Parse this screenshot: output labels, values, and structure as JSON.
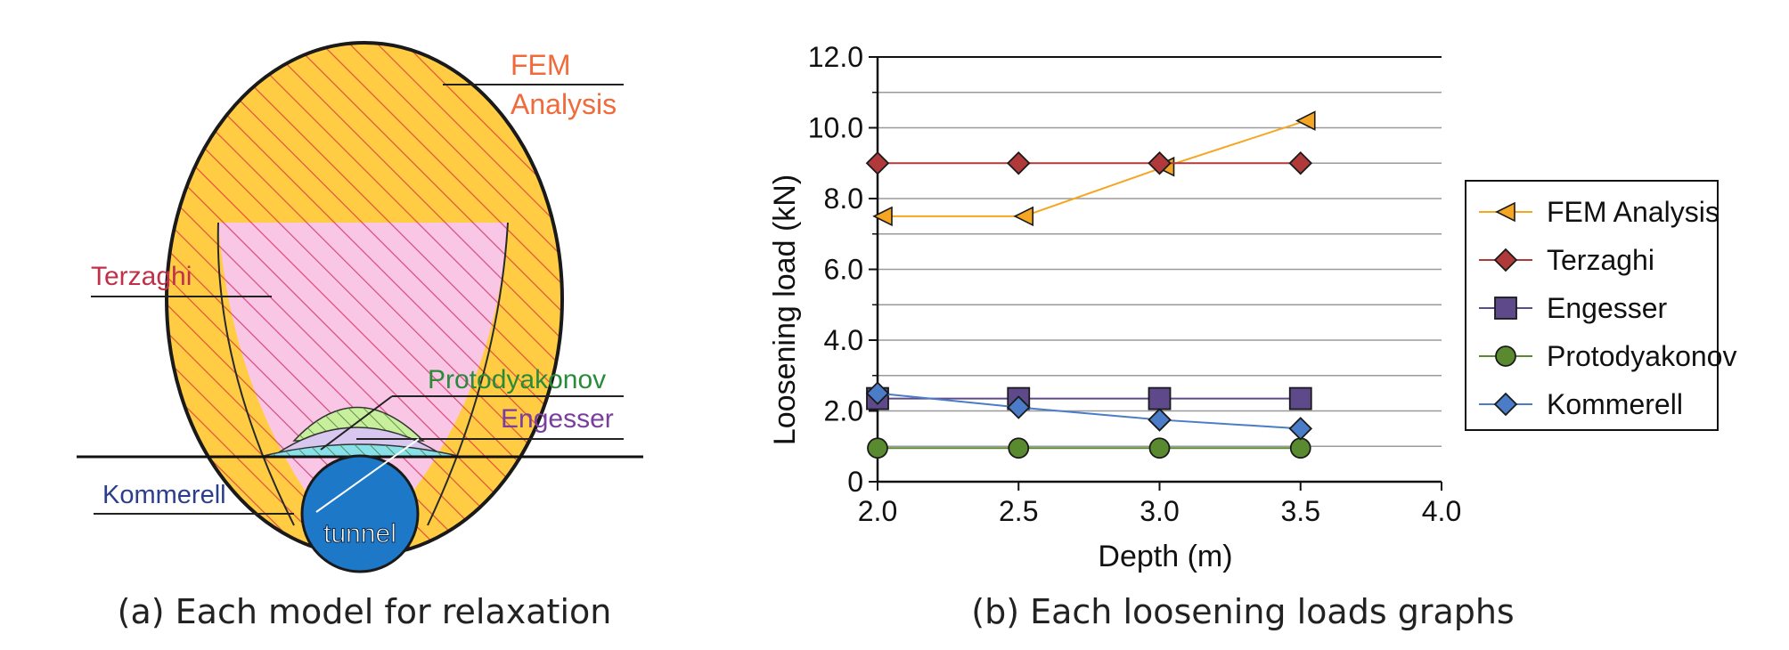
{
  "left_panel": {
    "caption": "(a) Each model for relaxation",
    "labels": {
      "fem_line1": "FEM",
      "fem_line2": "Analysis",
      "terzaghi": "Terzaghi",
      "protodyakonov": "Protodyakonov",
      "engesser": "Engesser",
      "kommerell": "Kommerell",
      "tunnel": "tunnel"
    },
    "colors": {
      "fem_fill": "#FFCC44",
      "fem_hatch": "#E0503C",
      "terzaghi_fill": "#F9C6E6",
      "terzaghi_hatch": "#D64A78",
      "proto_fill": "#C8F09C",
      "engesser_fill": "#D8C8F0",
      "kommerell_fill": "#88E0E8",
      "tunnel_fill": "#1E78C8",
      "fem_label": "#F06A3A",
      "terzaghi_label": "#C0304A",
      "proto_label": "#2A8A3A",
      "engesser_label": "#7A3E9E",
      "kommerell_label": "#2A3E8C"
    }
  },
  "chart_data": {
    "type": "line",
    "caption": "(b) Each loosening loads graphs",
    "xlabel": "Depth (m)",
    "ylabel": "Loosening load (kN)",
    "xlim": [
      2.0,
      4.0
    ],
    "ylim": [
      0,
      12.0
    ],
    "xticks": [
      "2.0",
      "2.5",
      "3.0",
      "3.5",
      "4.0"
    ],
    "yticks": [
      "0",
      "2.0",
      "4.0",
      "6.0",
      "8.0",
      "10.0",
      "12.0"
    ],
    "grid": "horizontal every 1.0",
    "legend_position": "right",
    "series": [
      {
        "name": "FEM Analysis",
        "marker": "triangle-left",
        "color": "#F5A623",
        "x": [
          2.0,
          2.5,
          3.0,
          3.5
        ],
        "values": [
          7.5,
          7.5,
          8.9,
          10.2
        ]
      },
      {
        "name": "Terzaghi",
        "marker": "diamond",
        "color": "#B03A3A",
        "x": [
          2.0,
          2.5,
          3.0,
          3.5
        ],
        "values": [
          9.0,
          9.0,
          9.0,
          9.0
        ]
      },
      {
        "name": "Engesser",
        "marker": "square",
        "color": "#5E4A8A",
        "x": [
          2.0,
          2.5,
          3.0,
          3.5
        ],
        "values": [
          2.35,
          2.35,
          2.35,
          2.35
        ]
      },
      {
        "name": "Protodyakonov",
        "marker": "circle",
        "color": "#5A8A30",
        "x": [
          2.0,
          2.5,
          3.0,
          3.5
        ],
        "values": [
          0.95,
          0.95,
          0.95,
          0.95
        ]
      },
      {
        "name": "Kommerell",
        "marker": "diamond",
        "color": "#4A7CC8",
        "x": [
          2.0,
          2.5,
          3.0,
          3.5
        ],
        "values": [
          2.5,
          2.1,
          1.75,
          1.5
        ]
      }
    ]
  }
}
